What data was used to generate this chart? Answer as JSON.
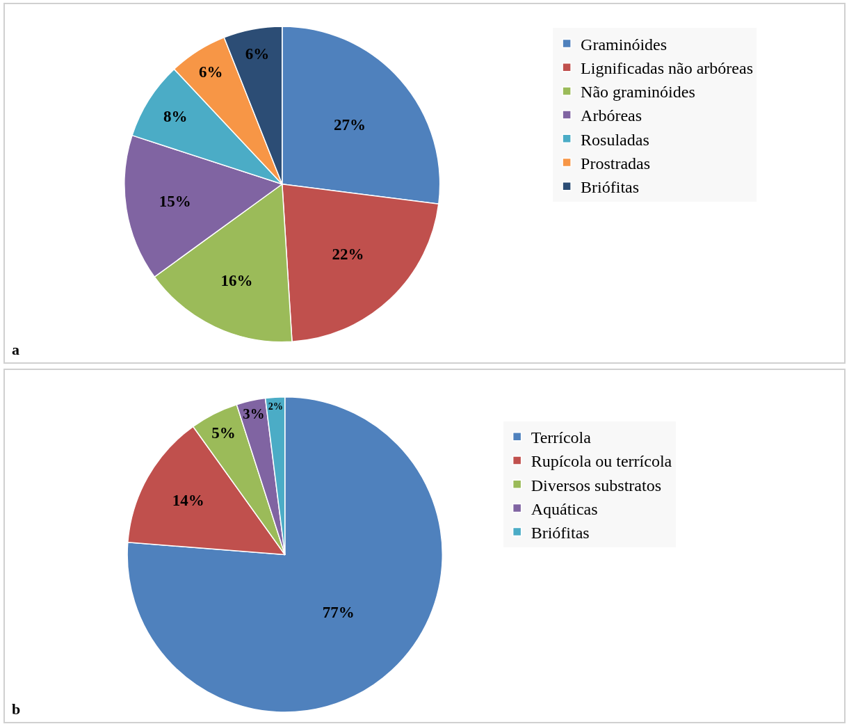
{
  "chart_data": [
    {
      "type": "pie",
      "categories": [
        "Graminóides",
        "Lignificadas não arbóreas",
        "Não graminóides",
        "Arbóreas",
        "Rosuladas",
        "Prostradas",
        "Briófitas"
      ],
      "values": [
        27,
        22,
        16,
        15,
        8,
        6,
        6
      ],
      "value_labels": [
        "27%",
        "22%",
        "16%",
        "15%",
        "8%",
        "6%",
        "6%"
      ],
      "colors": [
        "#4f81bd",
        "#c0504d",
        "#9bbb59",
        "#8064a2",
        "#4bacc6",
        "#f79646",
        "#2c4d75"
      ],
      "legend": "right",
      "annotations": [
        "a"
      ]
    },
    {
      "type": "pie",
      "categories": [
        "Terrícola",
        "Rupícola ou terrícola",
        "Diversos substratos",
        "Aquáticas",
        "Briófitas"
      ],
      "values": [
        77,
        14,
        5,
        3,
        2
      ],
      "value_labels": [
        "77%",
        "14%",
        "5%",
        "3%",
        "2%"
      ],
      "colors": [
        "#4f81bd",
        "#c0504d",
        "#9bbb59",
        "#8064a2",
        "#4bacc6"
      ],
      "legend": "right",
      "annotations": [
        "b"
      ]
    }
  ]
}
